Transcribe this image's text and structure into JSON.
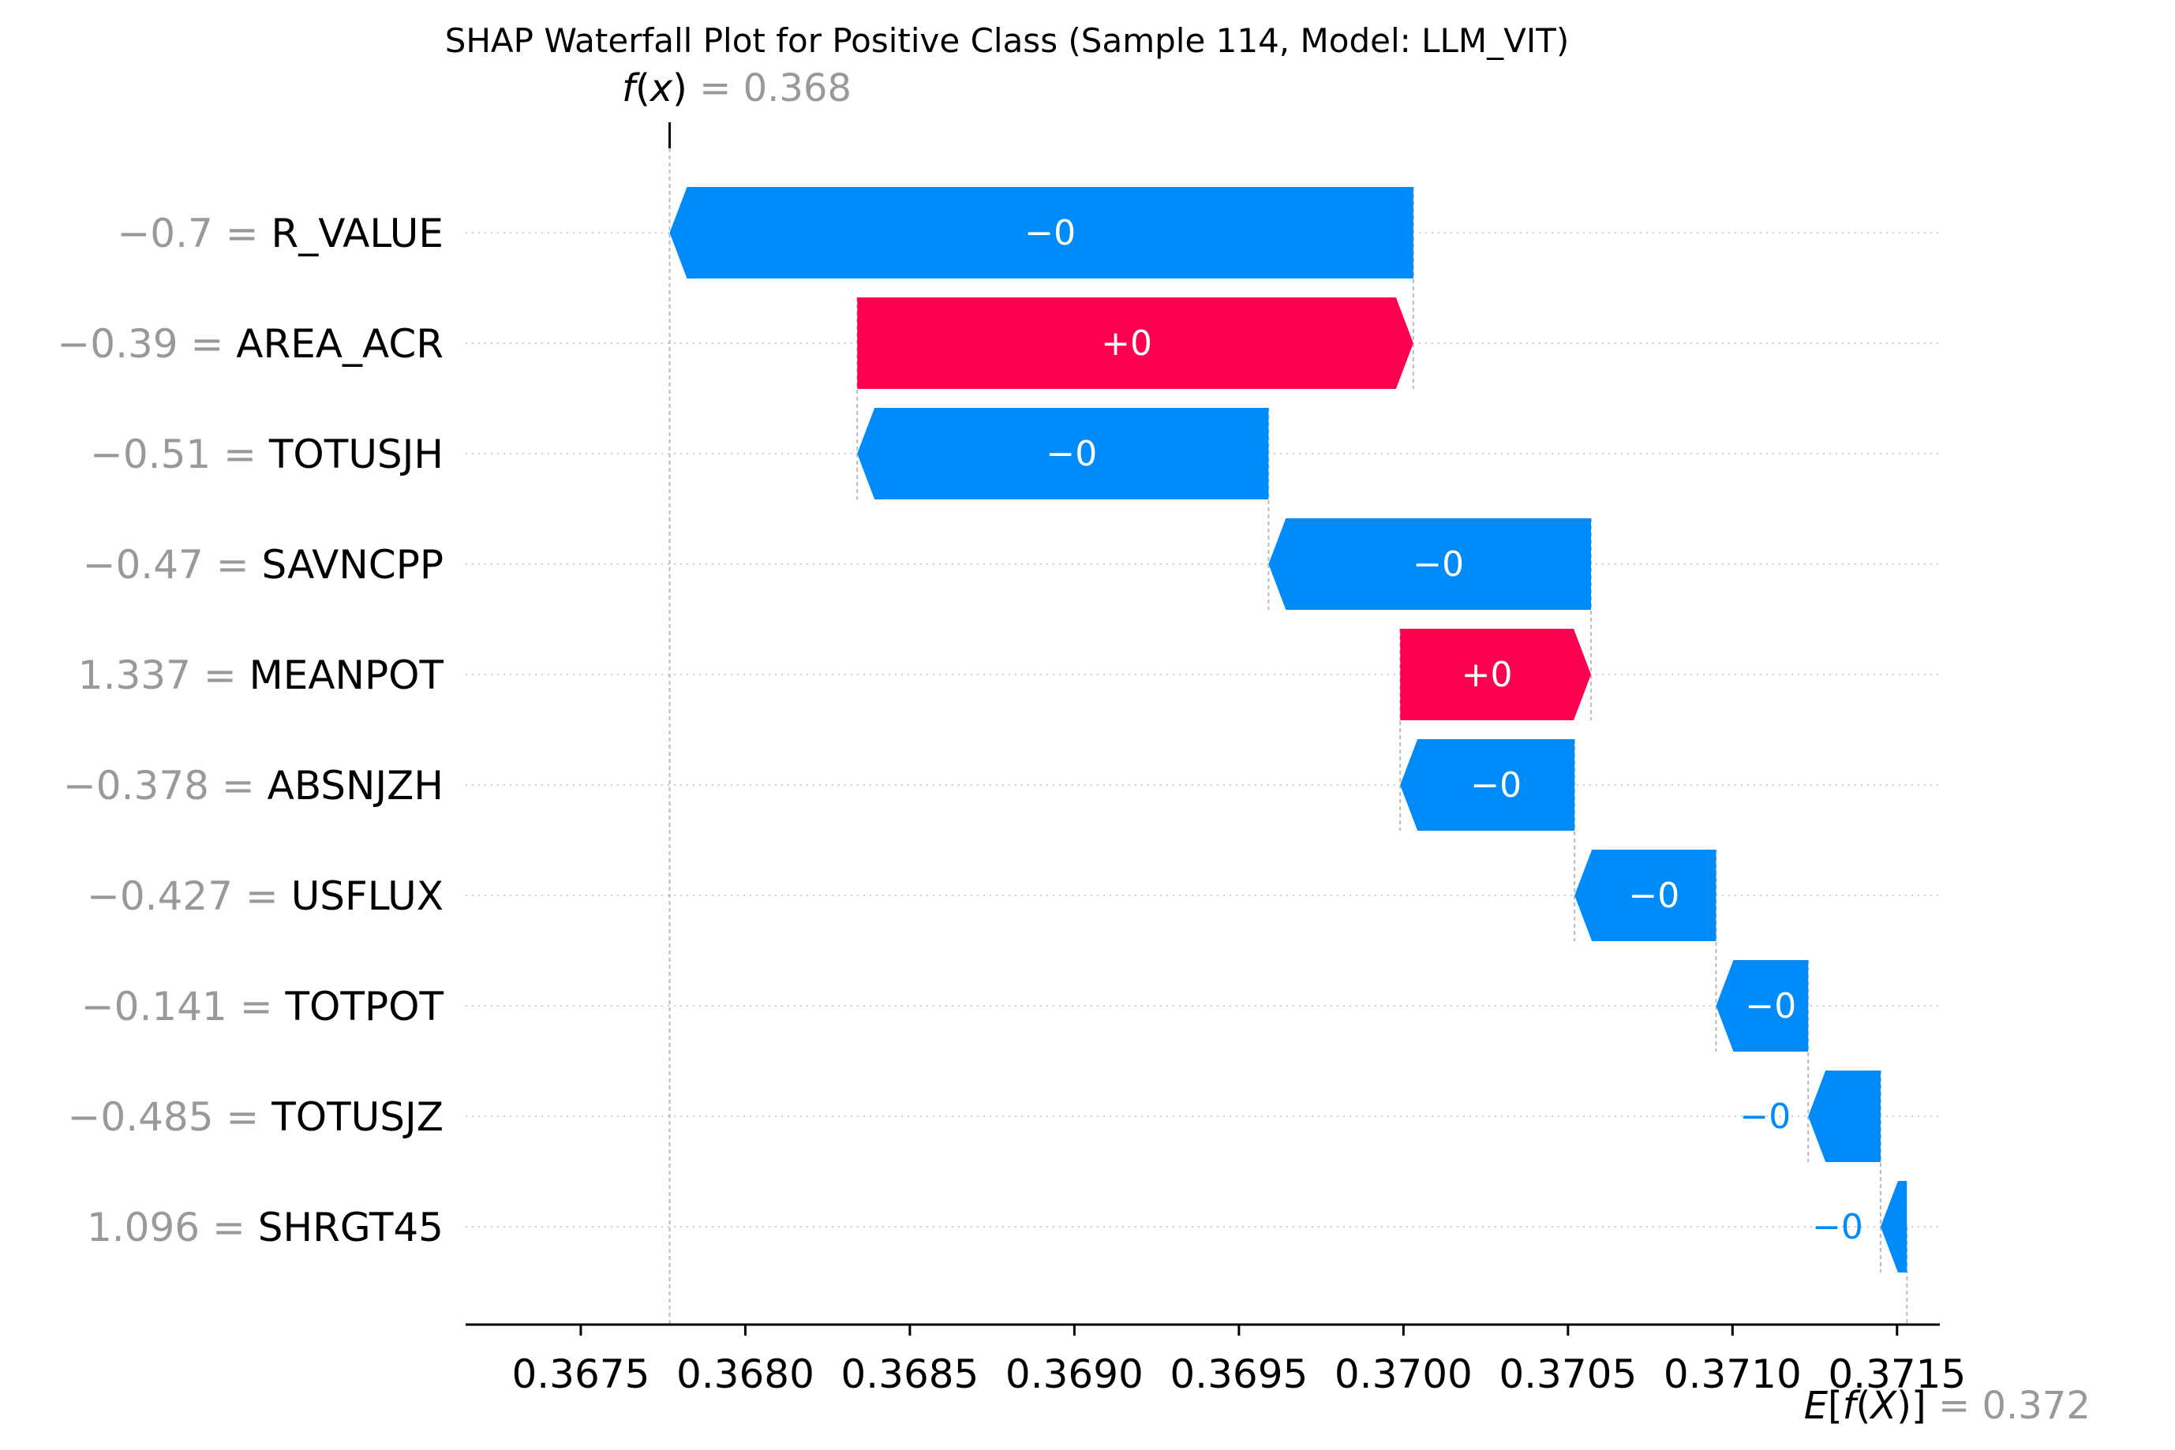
{
  "chart_data": {
    "type": "bar",
    "subtype": "shap-waterfall",
    "title": "SHAP Waterfall Plot for Positive Class (Sample 114, Model: LLM_VIT)",
    "fx": {
      "func": "f",
      "var": "x",
      "value_text": "0.368",
      "value": 0.36777
    },
    "efx": {
      "func": "f",
      "var": "X",
      "value_text": "0.372",
      "value": 0.37153
    },
    "xlim": [
      0.36715,
      0.37163
    ],
    "xticks": [
      0.3675,
      0.368,
      0.3685,
      0.369,
      0.3695,
      0.37,
      0.3705,
      0.371,
      0.3715
    ],
    "xtick_labels": [
      "0.3675",
      "0.3680",
      "0.3685",
      "0.3690",
      "0.3695",
      "0.3700",
      "0.3705",
      "0.3710",
      "0.3715"
    ],
    "grid": "horizontal-dotted",
    "colors": {
      "positive": "#ff0051",
      "negative": "#008bfb"
    },
    "features": [
      {
        "name": "R_VALUE",
        "value": "−0.7",
        "label": "−0",
        "start": 0.37003,
        "end": 0.36777
      },
      {
        "name": "AREA_ACR",
        "value": "−0.39",
        "label": "+0",
        "start": 0.36834,
        "end": 0.37003
      },
      {
        "name": "TOTUSJH",
        "value": "−0.51",
        "label": "−0",
        "start": 0.36959,
        "end": 0.36834
      },
      {
        "name": "SAVNCPP",
        "value": "−0.47",
        "label": "−0",
        "start": 0.37057,
        "end": 0.36959
      },
      {
        "name": "MEANPOT",
        "value": "1.337",
        "label": "+0",
        "start": 0.36999,
        "end": 0.37057
      },
      {
        "name": "ABSNJZH",
        "value": "−0.378",
        "label": "−0",
        "start": 0.37052,
        "end": 0.36999
      },
      {
        "name": "USFLUX",
        "value": "−0.427",
        "label": "−0",
        "start": 0.37095,
        "end": 0.37052
      },
      {
        "name": "TOTPOT",
        "value": "−0.141",
        "label": "−0",
        "start": 0.37123,
        "end": 0.37095
      },
      {
        "name": "TOTUSJZ",
        "value": "−0.485",
        "label": "−0",
        "start": 0.37145,
        "end": 0.37123
      },
      {
        "name": "SHRGT45",
        "value": "1.096",
        "label": "−0",
        "start": 0.37153,
        "end": 0.37145
      }
    ]
  }
}
